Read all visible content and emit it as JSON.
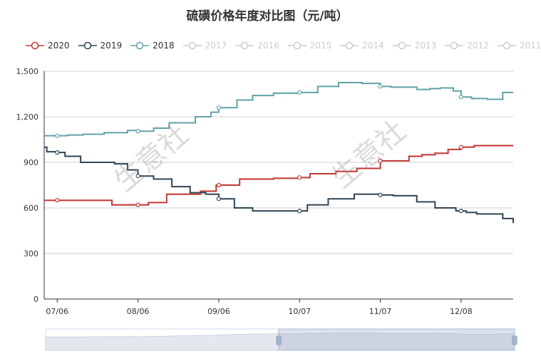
{
  "title": "硫磺价格年度对比图（元/吨）",
  "watermark_text": "生意社",
  "legend": [
    {
      "label": "2020",
      "color": "#c23531",
      "active": true
    },
    {
      "label": "2019",
      "color": "#2f4554",
      "active": true
    },
    {
      "label": "2018",
      "color": "#61a0a8",
      "active": true
    },
    {
      "label": "2017",
      "color": "#cccccc",
      "active": false
    },
    {
      "label": "2016",
      "color": "#cccccc",
      "active": false
    },
    {
      "label": "2015",
      "color": "#cccccc",
      "active": false
    },
    {
      "label": "2014",
      "color": "#cccccc",
      "active": false
    },
    {
      "label": "2013",
      "color": "#cccccc",
      "active": false
    },
    {
      "label": "2012",
      "color": "#cccccc",
      "active": false
    },
    {
      "label": "2011",
      "color": "#cccccc",
      "active": false
    }
  ],
  "chart_data": {
    "type": "line",
    "title": "硫磺价格年度对比图（元/吨）",
    "xlabel": "",
    "ylabel": "",
    "ylim": [
      0,
      1500
    ],
    "yticks": [
      0,
      300,
      600,
      900,
      1200,
      1500
    ],
    "ytick_labels": [
      "0",
      "300",
      "600",
      "900",
      "1,200",
      "1,500"
    ],
    "xrange_days": [
      0,
      180
    ],
    "xticks": [
      {
        "label": "07/06",
        "day": 5
      },
      {
        "label": "08/06",
        "day": 36
      },
      {
        "label": "09/06",
        "day": 67
      },
      {
        "label": "10/07",
        "day": 98
      },
      {
        "label": "11/07",
        "day": 129
      },
      {
        "label": "12/08",
        "day": 160
      }
    ],
    "grid": true,
    "series": [
      {
        "name": "2020",
        "color": "#c23531",
        "x": [
          0,
          12,
          26,
          34,
          40,
          47,
          60,
          66,
          75,
          81,
          88,
          98,
          102,
          112,
          120,
          129,
          140,
          145,
          150,
          155,
          160,
          165,
          180
        ],
        "values": [
          650,
          650,
          620,
          620,
          635,
          690,
          710,
          750,
          790,
          790,
          795,
          800,
          825,
          840,
          860,
          910,
          940,
          950,
          960,
          985,
          1000,
          1010,
          1010
        ]
      },
      {
        "name": "2019",
        "color": "#2f4554",
        "x": [
          0,
          1,
          5,
          8,
          14,
          20,
          27,
          32,
          36,
          42,
          49,
          56,
          62,
          67,
          73,
          80,
          88,
          96,
          98,
          101,
          109,
          119,
          125,
          129,
          134,
          143,
          150,
          155,
          158,
          162,
          166,
          176,
          180
        ],
        "values": [
          1000,
          970,
          965,
          940,
          900,
          900,
          890,
          850,
          810,
          790,
          740,
          700,
          690,
          660,
          600,
          580,
          580,
          580,
          580,
          620,
          660,
          690,
          690,
          685,
          680,
          640,
          600,
          600,
          580,
          570,
          560,
          530,
          500
        ]
      },
      {
        "name": "2018",
        "color": "#61a0a8",
        "x": [
          0,
          4,
          9,
          15,
          23,
          32,
          36,
          42,
          48,
          58,
          64,
          67,
          74,
          80,
          88,
          96,
          98,
          105,
          113,
          122,
          129,
          133,
          143,
          148,
          152,
          157,
          160,
          164,
          170,
          176,
          180
        ],
        "values": [
          1075,
          1075,
          1080,
          1085,
          1095,
          1110,
          1105,
          1125,
          1160,
          1200,
          1230,
          1260,
          1310,
          1340,
          1355,
          1355,
          1360,
          1400,
          1425,
          1420,
          1400,
          1395,
          1380,
          1385,
          1390,
          1370,
          1330,
          1320,
          1315,
          1360,
          1360
        ]
      }
    ]
  }
}
